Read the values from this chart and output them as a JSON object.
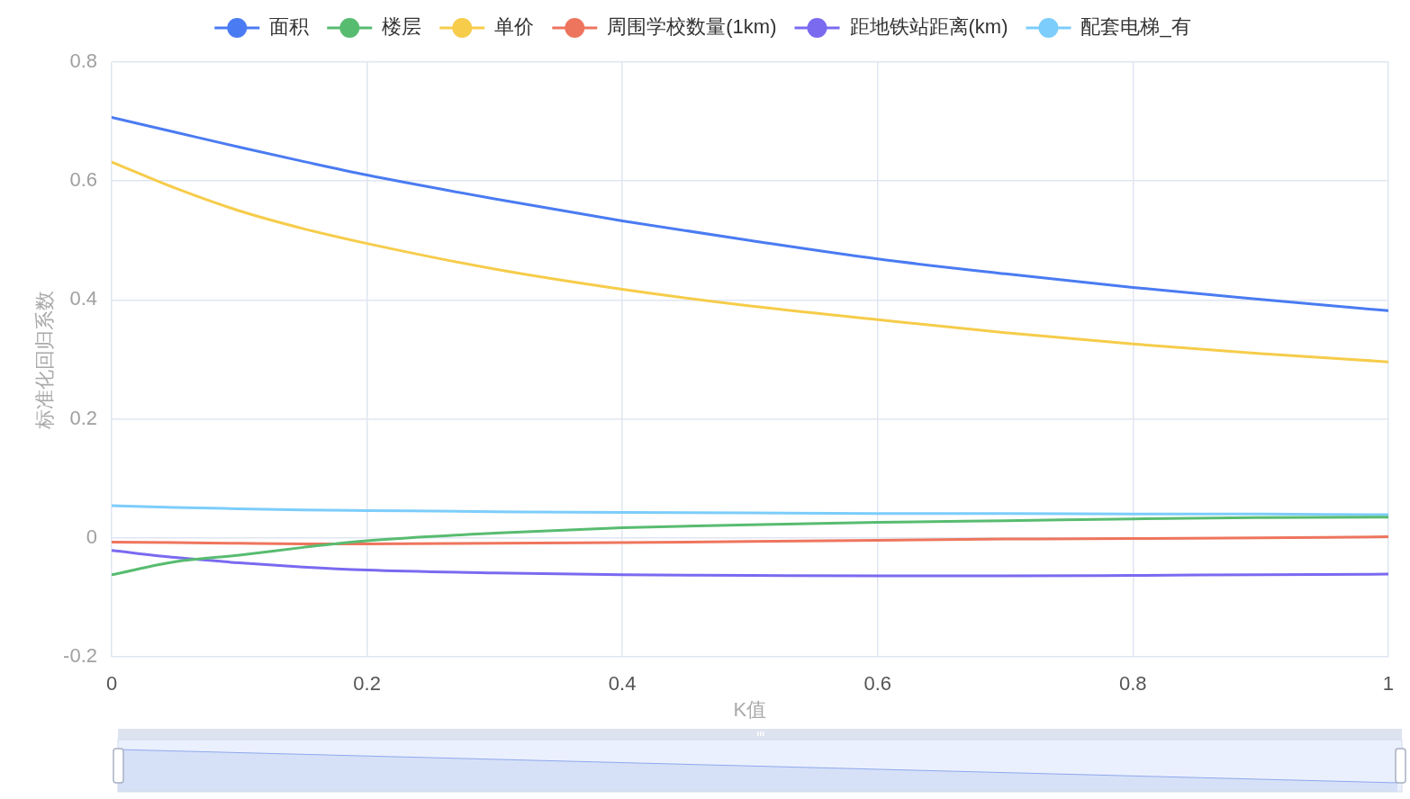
{
  "chart_data": {
    "type": "line",
    "xlabel": "K值",
    "ylabel": "标准化回归系数",
    "x": [
      0,
      0.05,
      0.1,
      0.15,
      0.2,
      0.3,
      0.4,
      0.5,
      0.6,
      0.7,
      0.8,
      0.9,
      1
    ],
    "series": [
      {
        "name": "面积",
        "color": "#4a7bf2",
        "values": [
          0.707,
          0.682,
          0.657,
          0.633,
          0.61,
          0.57,
          0.533,
          0.5,
          0.469,
          0.444,
          0.421,
          0.401,
          0.382
        ]
      },
      {
        "name": "楼层",
        "color": "#58bc70",
        "values": [
          -0.062,
          -0.04,
          -0.029,
          -0.016,
          -0.005,
          0.008,
          0.017,
          0.022,
          0.026,
          0.029,
          0.032,
          0.034,
          0.035
        ]
      },
      {
        "name": "单价",
        "color": "#f6cc4a",
        "values": [
          0.632,
          0.588,
          0.55,
          0.52,
          0.495,
          0.452,
          0.418,
          0.39,
          0.367,
          0.345,
          0.326,
          0.31,
          0.296
        ]
      },
      {
        "name": "周围学校数量(1km)",
        "color": "#ee755d",
        "values": [
          -0.007,
          -0.008,
          -0.009,
          -0.01,
          -0.01,
          -0.009,
          -0.008,
          -0.006,
          -0.004,
          -0.002,
          -0.001,
          0.0,
          0.002
        ]
      },
      {
        "name": "距地铁站距离(km)",
        "color": "#7a6af0",
        "values": [
          -0.021,
          -0.033,
          -0.042,
          -0.049,
          -0.054,
          -0.059,
          -0.062,
          -0.063,
          -0.064,
          -0.064,
          -0.063,
          -0.062,
          -0.061
        ]
      },
      {
        "name": "配套电梯_有",
        "color": "#7ccdfb",
        "values": [
          0.054,
          0.051,
          0.049,
          0.047,
          0.046,
          0.044,
          0.043,
          0.042,
          0.041,
          0.041,
          0.04,
          0.04,
          0.039
        ]
      }
    ],
    "xlim": [
      0,
      1
    ],
    "xticks": [
      0,
      0.2,
      0.4,
      0.6,
      0.8,
      1
    ],
    "ylim": [
      -0.2,
      0.8
    ],
    "yticks": [
      -0.2,
      0,
      0.2,
      0.4,
      0.6,
      0.8
    ],
    "grid": true,
    "legend": "top",
    "marker": "none"
  }
}
